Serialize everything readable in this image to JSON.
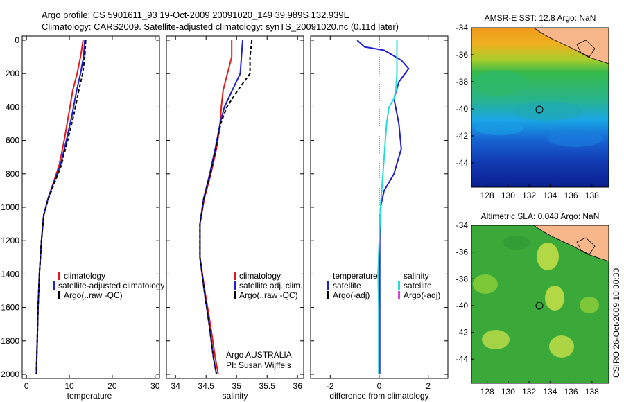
{
  "header": {
    "line1": "Argo profile: CS 5901611_93 19-Oct-2009 20091020_149 39.989S 132.939E",
    "line2": "Climatology: CARS2009. Satellite-adjusted climatology: synTS_20091020.nc (0.11d later)"
  },
  "side_stamp": "CSIRO 26-Oct-2009 10:30:30",
  "colors": {
    "climatology": "#e31a1c",
    "satellite": "#1f1fcc",
    "argo": "#000000",
    "cyan": "#22dddd",
    "magenta": "#d444d4"
  },
  "chart_data": [
    {
      "type": "line",
      "xlabel": "temperature",
      "xlim": [
        -1,
        31
      ],
      "ylim": [
        2000,
        0
      ],
      "x_ticks": [
        0,
        10,
        20,
        30
      ],
      "y_ticks": [
        0,
        200,
        400,
        600,
        800,
        1000,
        1200,
        1400,
        1600,
        1800,
        2000
      ],
      "legend": [
        "climatology",
        "satellite-adjusted climatology",
        "Argo(..raw -QC)"
      ],
      "series": [
        {
          "name": "climatology",
          "color": "#e31a1c",
          "dash": "",
          "x": [
            13.2,
            12.6,
            11.8,
            10.8,
            9.8,
            8.8,
            7.6,
            6.3,
            5.0,
            4.0,
            3.5,
            3.0,
            2.7,
            2.5,
            2.3
          ],
          "y": [
            0,
            100,
            200,
            300,
            450,
            600,
            750,
            850,
            950,
            1050,
            1200,
            1400,
            1600,
            1800,
            2000
          ]
        },
        {
          "name": "satellite-adjusted climatology",
          "color": "#1f1fcc",
          "dash": "",
          "x": [
            13.6,
            13.3,
            12.6,
            11.7,
            10.6,
            9.3,
            7.9,
            6.4,
            5.0,
            4.0,
            3.5,
            3.0,
            2.7,
            2.5,
            2.3
          ],
          "y": [
            0,
            100,
            200,
            300,
            450,
            600,
            750,
            850,
            950,
            1050,
            1200,
            1400,
            1600,
            1800,
            2000
          ]
        },
        {
          "name": "Argo(..raw -QC)",
          "color": "#000000",
          "dash": "5,3",
          "x": [
            13.8,
            13.6,
            13.1,
            12.2,
            11.0,
            9.6,
            8.1,
            6.6,
            5.1,
            4.0,
            3.5,
            3.0,
            2.7,
            2.5,
            2.3
          ],
          "y": [
            0,
            100,
            200,
            300,
            450,
            600,
            750,
            850,
            950,
            1050,
            1200,
            1400,
            1600,
            1800,
            2000
          ]
        }
      ]
    },
    {
      "type": "line",
      "xlabel": "salinity",
      "xlim": [
        33.85,
        36.1
      ],
      "ylim": [
        2000,
        0
      ],
      "x_ticks": [
        34,
        34.5,
        35,
        35.5,
        36
      ],
      "y_ticks": [
        0,
        200,
        400,
        600,
        800,
        1000,
        1200,
        1400,
        1600,
        1800,
        2000
      ],
      "legend": [
        "climatology",
        "satellite adj. clim.",
        "Argo(..raw -QC)"
      ],
      "annotation": [
        "Argo AUSTRALIA",
        "PI: Susan Wijffels"
      ],
      "series": [
        {
          "name": "climatology",
          "color": "#e31a1c",
          "dash": "",
          "x": [
            34.92,
            34.92,
            34.85,
            34.78,
            34.75,
            34.73,
            34.67,
            34.58,
            34.47,
            34.4,
            34.4,
            34.48,
            34.57,
            34.65,
            34.7
          ],
          "y": [
            0,
            100,
            200,
            300,
            400,
            500,
            650,
            800,
            950,
            1100,
            1300,
            1500,
            1700,
            1900,
            2000
          ]
        },
        {
          "name": "satellite adj. clim.",
          "color": "#1f1fcc",
          "dash": "",
          "x": [
            35.1,
            35.08,
            35.06,
            34.93,
            34.8,
            34.73,
            34.65,
            34.56,
            34.46,
            34.4,
            34.4,
            34.47,
            34.55,
            34.62,
            34.67
          ],
          "y": [
            0,
            100,
            200,
            300,
            400,
            500,
            650,
            800,
            950,
            1100,
            1300,
            1500,
            1700,
            1900,
            2000
          ]
        },
        {
          "name": "Argo(..raw -QC)",
          "color": "#000000",
          "dash": "5,3",
          "x": [
            35.25,
            35.22,
            35.22,
            35.02,
            34.84,
            34.74,
            34.66,
            34.57,
            34.46,
            34.4,
            34.4,
            34.47,
            34.55,
            34.62,
            34.67
          ],
          "y": [
            0,
            100,
            200,
            300,
            400,
            500,
            650,
            800,
            950,
            1100,
            1300,
            1500,
            1700,
            1900,
            2000
          ]
        }
      ]
    },
    {
      "type": "line",
      "xlabel": "difference from climatology",
      "xlim": [
        -2.8,
        2.8
      ],
      "ylim": [
        2000,
        0
      ],
      "x_ticks": [
        -2,
        0,
        2
      ],
      "y_ticks": [
        0,
        200,
        400,
        600,
        800,
        1000,
        1200,
        1400,
        1600,
        1800,
        2000
      ],
      "legend_left": {
        "title": "temperature",
        "items": [
          "satellite",
          "Argo(-adj)"
        ]
      },
      "legend_right": {
        "title": "salinity",
        "items": [
          "satellite",
          "Argo(-adj)"
        ]
      },
      "zero_line": 0,
      "series": [
        {
          "name": "temperature satellite",
          "color": "#1f1fcc",
          "dash": "",
          "x": [
            -0.9,
            -0.6,
            0.2,
            0.9,
            1.2,
            0.8,
            0.6,
            0.8,
            0.9,
            0.6,
            0.2,
            0.05,
            0.02,
            0.02,
            0.02,
            0.02,
            0.02
          ],
          "y": [
            0,
            40,
            60,
            120,
            170,
            250,
            350,
            500,
            650,
            800,
            900,
            1000,
            1200,
            1400,
            1600,
            1800,
            2000
          ]
        },
        {
          "name": "salinity satellite",
          "color": "#22dddd",
          "dash": "",
          "x": [
            0.72,
            0.72,
            0.72,
            0.68,
            0.6,
            0.4,
            0.3,
            0.25,
            0.2,
            0.15,
            0.1,
            0.05,
            0.0,
            -0.05,
            -0.02,
            -0.02,
            -0.02
          ],
          "y": [
            0,
            100,
            200,
            300,
            350,
            400,
            500,
            600,
            700,
            800,
            900,
            1000,
            1200,
            1400,
            1600,
            1800,
            2000
          ]
        }
      ]
    }
  ],
  "maps": [
    {
      "title": "AMSR-E SST: 12.8 Argo: NaN",
      "x_ticks": [
        128,
        130,
        132,
        134,
        136,
        138
      ],
      "y_ticks": [
        -34,
        -36,
        -38,
        -40,
        -42,
        -44
      ]
    },
    {
      "title": "Altimetric SLA: 0.048 Argo: NaN",
      "x_ticks": [
        128,
        130,
        132,
        134,
        136,
        138
      ],
      "y_ticks": [
        -34,
        -36,
        -38,
        -40,
        -42,
        -44
      ]
    }
  ]
}
